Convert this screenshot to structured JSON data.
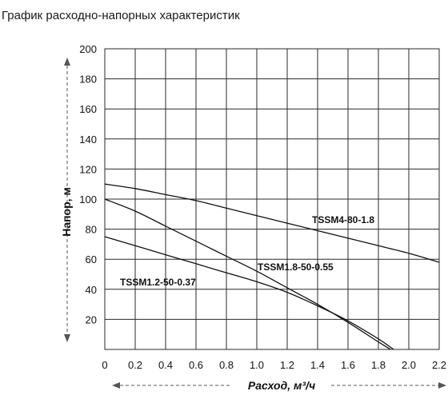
{
  "chart_data": {
    "type": "line",
    "title": "График расходно-напорных характеристик",
    "xlabel": "Расход, м³/ч",
    "ylabel": "Напор, м",
    "xlim": [
      0,
      2.2
    ],
    "ylim": [
      0,
      200
    ],
    "x_ticks": [
      "0",
      "0.2",
      "0.4",
      "0.6",
      "0.8",
      "1.0",
      "1.2",
      "1.4",
      "1.6",
      "1.8",
      "2.0",
      "2.2"
    ],
    "y_ticks": [
      "20",
      "40",
      "60",
      "80",
      "100",
      "120",
      "140",
      "160",
      "180",
      "200"
    ],
    "grid": true,
    "series": [
      {
        "name": "TSSM4-80-1.8",
        "x": [
          0,
          0.2,
          0.4,
          0.6,
          0.8,
          1.0,
          1.2,
          1.4,
          1.6,
          1.8,
          2.0,
          2.2
        ],
        "y": [
          110,
          107,
          103,
          99,
          94,
          89,
          84,
          79,
          74,
          69,
          64,
          58
        ]
      },
      {
        "name": "TSSM1.8-50-0.55",
        "x": [
          0,
          0.2,
          0.4,
          0.6,
          0.8,
          1.0,
          1.2,
          1.4,
          1.6,
          1.8,
          1.88
        ],
        "y": [
          100,
          92,
          82,
          72,
          62,
          52,
          41,
          30,
          18,
          5,
          0
        ]
      },
      {
        "name": "TSSM1.2-50-0.37",
        "x": [
          0,
          0.2,
          0.4,
          0.6,
          0.8,
          1.0,
          1.2,
          1.4,
          1.6,
          1.8,
          1.9
        ],
        "y": [
          75,
          69,
          63,
          57,
          51,
          45,
          38,
          29,
          19,
          7,
          0
        ]
      }
    ]
  }
}
